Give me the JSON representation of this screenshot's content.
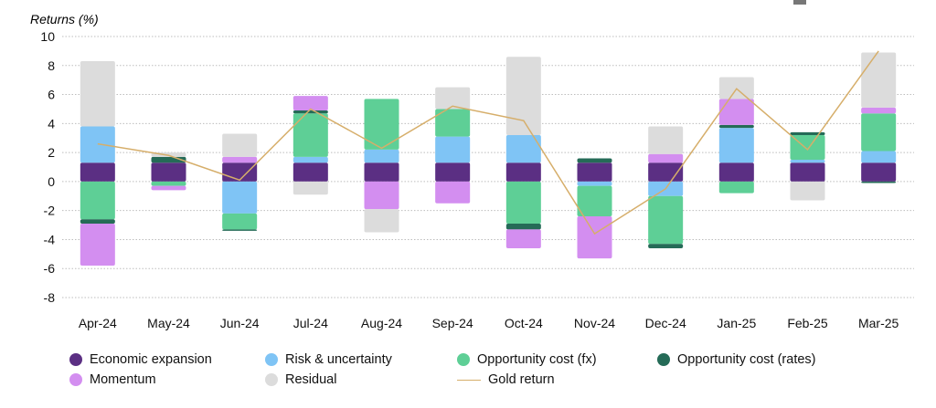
{
  "chart_data": {
    "type": "bar",
    "stacked": true,
    "ylabel": "Returns (%)",
    "ylim": [
      -8,
      10
    ],
    "yticks": [
      10,
      8,
      6,
      4,
      2,
      0,
      -2,
      -4,
      -6,
      -8
    ],
    "grid": true,
    "legend_position": "bottom",
    "categories": [
      "Apr-24",
      "May-24",
      "Jun-24",
      "Jul-24",
      "Aug-24",
      "Sep-24",
      "Oct-24",
      "Nov-24",
      "Dec-24",
      "Jan-25",
      "Feb-25",
      "Mar-25"
    ],
    "series": [
      {
        "name": "Economic expansion",
        "color": "#5b2f83",
        "values": [
          1.3,
          1.3,
          1.3,
          1.3,
          1.3,
          1.3,
          1.3,
          1.3,
          1.3,
          1.3,
          1.3,
          1.3
        ]
      },
      {
        "name": "Risk & uncertainty",
        "color": "#7fc4f5",
        "values": [
          2.5,
          0.0,
          -2.2,
          0.4,
          0.9,
          1.8,
          1.9,
          -0.3,
          -1.0,
          2.4,
          0.2,
          0.8
        ]
      },
      {
        "name": "Opportunity cost (fx)",
        "color": "#5ecf96",
        "values": [
          -2.6,
          -0.3,
          -1.1,
          3.0,
          3.5,
          1.9,
          -2.9,
          -2.1,
          -3.3,
          -0.8,
          1.7,
          2.6
        ]
      },
      {
        "name": "Opportunity cost (rates)",
        "color": "#256b57",
        "values": [
          -0.3,
          0.4,
          -0.1,
          0.2,
          0.0,
          0.0,
          -0.4,
          0.3,
          -0.3,
          0.2,
          0.2,
          -0.1
        ]
      },
      {
        "name": "Momentum",
        "color": "#d38ef0",
        "values": [
          -2.9,
          -0.3,
          0.4,
          1.0,
          -1.9,
          -1.5,
          -1.3,
          -2.9,
          0.6,
          1.8,
          0.0,
          0.4
        ]
      },
      {
        "name": "Residual",
        "color": "#dcdcdc",
        "values": [
          4.5,
          0.3,
          1.6,
          -0.9,
          -1.6,
          1.5,
          5.4,
          0.0,
          1.9,
          1.5,
          -1.3,
          3.8
        ]
      }
    ],
    "line": {
      "name": "Gold return",
      "color": "#d6ae6a",
      "values": [
        2.6,
        1.8,
        0.1,
        5.0,
        2.3,
        5.2,
        4.2,
        -3.6,
        -0.5,
        6.4,
        2.2,
        9.0
      ]
    }
  }
}
